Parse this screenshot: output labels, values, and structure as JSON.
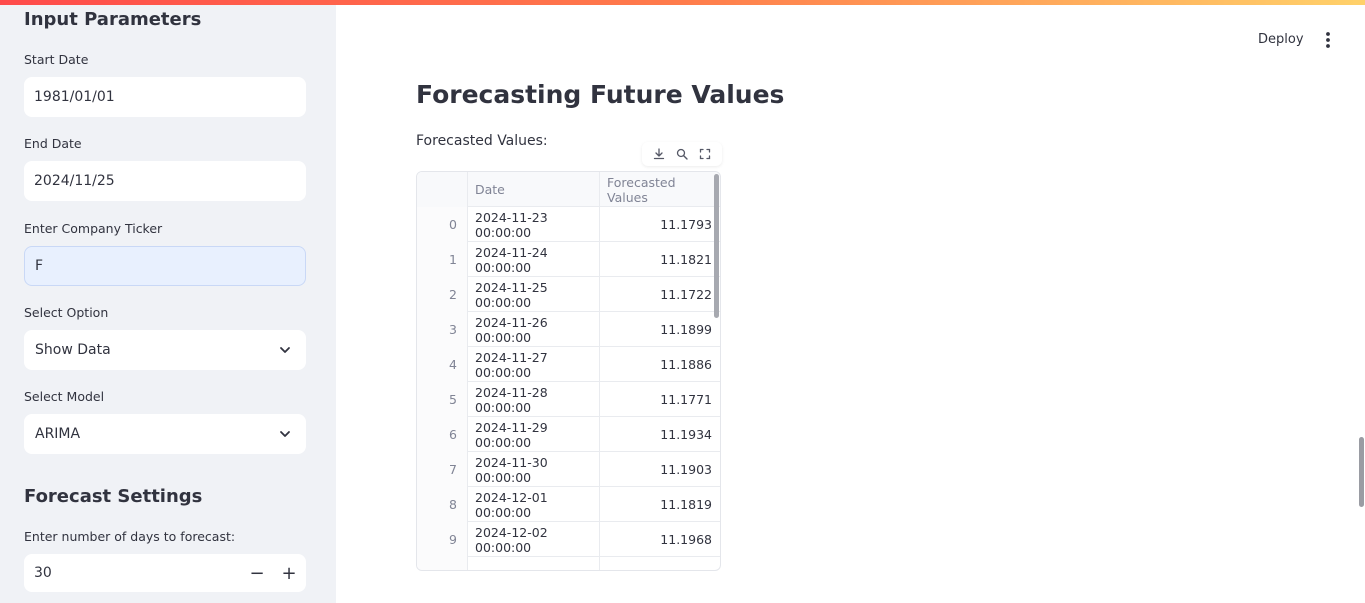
{
  "sidebar": {
    "section_title": "Input Parameters",
    "start_date": {
      "label": "Start Date",
      "value": "1981/01/01"
    },
    "end_date": {
      "label": "End Date",
      "value": "2024/11/25"
    },
    "ticker": {
      "label": "Enter Company Ticker",
      "value": "F"
    },
    "option": {
      "label": "Select Option",
      "value": "Show Data"
    },
    "model": {
      "label": "Select Model",
      "value": "ARIMA"
    },
    "forecast_title": "Forecast Settings",
    "days": {
      "label": "Enter number of days to forecast:",
      "value": "30",
      "minus": "−",
      "plus": "+"
    }
  },
  "header": {
    "deploy_label": "Deploy",
    "menu_icon": "vertical-ellipsis-icon"
  },
  "main": {
    "title": "Forecasting Future Values",
    "table_label": "Forecasted Values:",
    "toolbar_icons": [
      "download-icon",
      "search-icon",
      "fullscreen-icon"
    ],
    "table": {
      "columns": [
        "",
        "Date",
        "Forecasted Values"
      ],
      "rows": [
        {
          "idx": "0",
          "date": "2024-11-23 00:00:00",
          "value": "11.1793"
        },
        {
          "idx": "1",
          "date": "2024-11-24 00:00:00",
          "value": "11.1821"
        },
        {
          "idx": "2",
          "date": "2024-11-25 00:00:00",
          "value": "11.1722"
        },
        {
          "idx": "3",
          "date": "2024-11-26 00:00:00",
          "value": "11.1899"
        },
        {
          "idx": "4",
          "date": "2024-11-27 00:00:00",
          "value": "11.1886"
        },
        {
          "idx": "5",
          "date": "2024-11-28 00:00:00",
          "value": "11.1771"
        },
        {
          "idx": "6",
          "date": "2024-11-29 00:00:00",
          "value": "11.1934"
        },
        {
          "idx": "7",
          "date": "2024-11-30 00:00:00",
          "value": "11.1903"
        },
        {
          "idx": "8",
          "date": "2024-12-01 00:00:00",
          "value": "11.1819"
        },
        {
          "idx": "9",
          "date": "2024-12-02 00:00:00",
          "value": "11.1968"
        }
      ]
    }
  },
  "colors": {
    "accent": "#ff4b4b",
    "sidebar_bg": "#f0f2f6",
    "text": "#31333f",
    "muted": "#808495"
  }
}
